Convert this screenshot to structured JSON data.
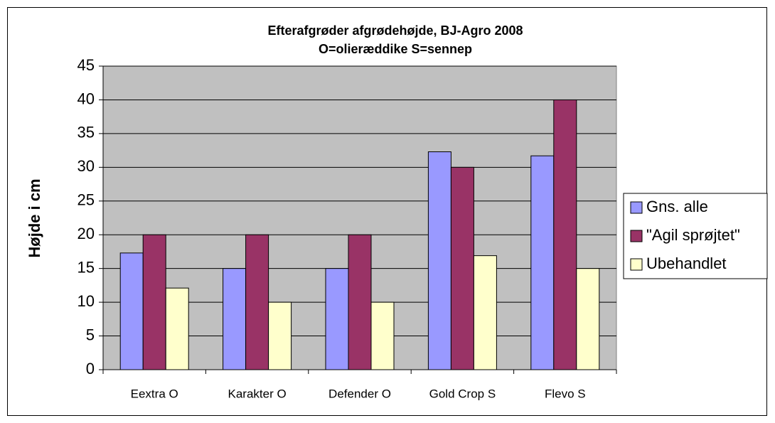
{
  "chart_data": {
    "type": "bar",
    "title": [
      "Efterafgrøder afgrødehøjde, BJ-Agro 2008",
      "O=olieræddike S=sennep"
    ],
    "y_label": "Højde i cm",
    "categories": [
      "Eextra O",
      "Karakter O",
      "Defender O",
      "Gold Crop S",
      "Flevo S"
    ],
    "series": [
      {
        "name": "Gns. alle",
        "color": "#9999ff",
        "values": [
          17.3,
          15,
          15,
          32.3,
          31.7
        ]
      },
      {
        "name": "\"Agil sprøjtet\"",
        "color": "#993366",
        "values": [
          20,
          20,
          20,
          30,
          40
        ]
      },
      {
        "name": "Ubehandlet",
        "color": "#ffffcc",
        "values": [
          12.1,
          10,
          10,
          16.9,
          15
        ]
      }
    ],
    "ylim": [
      0,
      45
    ],
    "yticks": [
      0,
      5,
      10,
      15,
      20,
      25,
      30,
      35,
      40,
      45
    ],
    "grid": true,
    "legend": "right",
    "plot_background": "#c0c0c0"
  }
}
